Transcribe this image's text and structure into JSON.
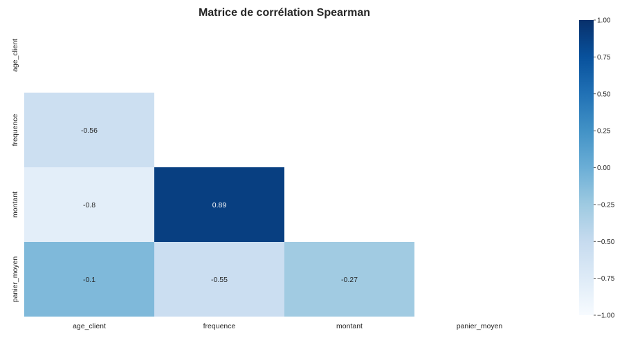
{
  "chart_data": {
    "type": "heatmap",
    "title": "Matrice de corrélation Spearman",
    "row_labels": [
      "age_client",
      "frequence",
      "montant",
      "panier_moyen"
    ],
    "col_labels": [
      "age_client",
      "frequence",
      "montant",
      "panier_moyen"
    ],
    "mask": "upper-triangle-including-diagonal",
    "cells": [
      {
        "row": 1,
        "col": 0,
        "value": -0.56,
        "label": "-0.56"
      },
      {
        "row": 2,
        "col": 0,
        "value": -0.8,
        "label": "-0.8"
      },
      {
        "row": 2,
        "col": 1,
        "value": 0.89,
        "label": "0.89"
      },
      {
        "row": 3,
        "col": 0,
        "value": -0.1,
        "label": "-0.1"
      },
      {
        "row": 3,
        "col": 1,
        "value": -0.55,
        "label": "-0.55"
      },
      {
        "row": 3,
        "col": 2,
        "value": -0.27,
        "label": "-0.27"
      }
    ],
    "colorbar": {
      "range": [
        -1.0,
        1.0
      ],
      "ticks": [
        1.0,
        0.75,
        0.5,
        0.25,
        0.0,
        -0.25,
        -0.5,
        -0.75,
        -1.0
      ],
      "tick_labels": [
        "1.00",
        "0.75",
        "0.50",
        "0.25",
        "0.00",
        "−0.25",
        "−0.50",
        "−0.75",
        "−1.00"
      ],
      "colormap": "Blues",
      "placement": "right"
    },
    "colormap_stops": [
      "#f7fbff",
      "#deebf7",
      "#c6dbef",
      "#9ecae1",
      "#6baed6",
      "#4292c6",
      "#2171b5",
      "#08519c",
      "#08306b"
    ]
  }
}
